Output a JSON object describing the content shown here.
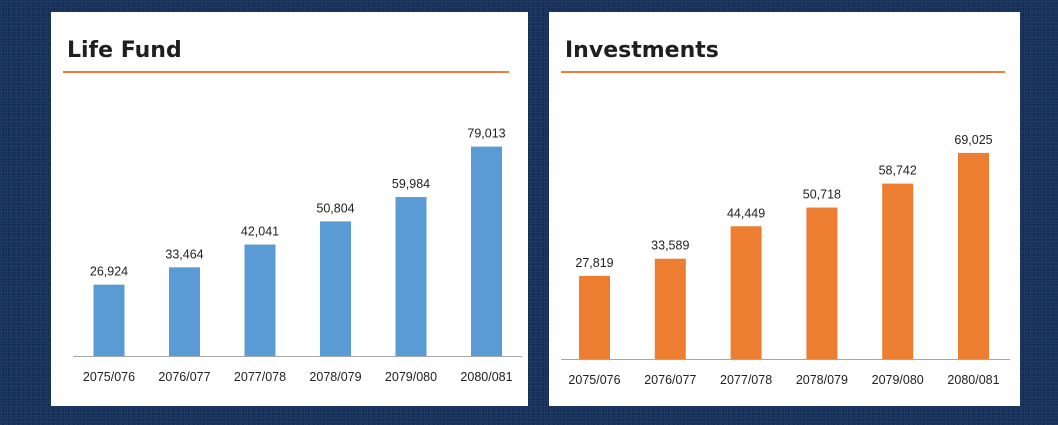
{
  "chart_data": [
    {
      "type": "bar",
      "title": "Life Fund",
      "categories": [
        "2075/076",
        "2076/077",
        "2077/078",
        "2078/079",
        "2079/080",
        "2080/081"
      ],
      "values": [
        26924,
        33464,
        42041,
        50804,
        59984,
        79013
      ],
      "value_labels": [
        "26,924",
        "33,464",
        "42,041",
        "50,804",
        "59,984",
        "79,013"
      ],
      "color": "#5b9bd5",
      "ylim": [
        0,
        80000
      ],
      "grid": false
    },
    {
      "type": "bar",
      "title": "Investments",
      "categories": [
        "2075/076",
        "2076/077",
        "2077/078",
        "2078/079",
        "2079/080",
        "2080/081"
      ],
      "values": [
        27819,
        33589,
        44449,
        50718,
        58742,
        69025
      ],
      "value_labels": [
        "27,819",
        "33,589",
        "44,449",
        "50,718",
        "58,742",
        "69,025"
      ],
      "color": "#ed7d31",
      "ylim": [
        0,
        72000
      ],
      "grid": false
    }
  ],
  "title_rule_color": "#ed7d31"
}
